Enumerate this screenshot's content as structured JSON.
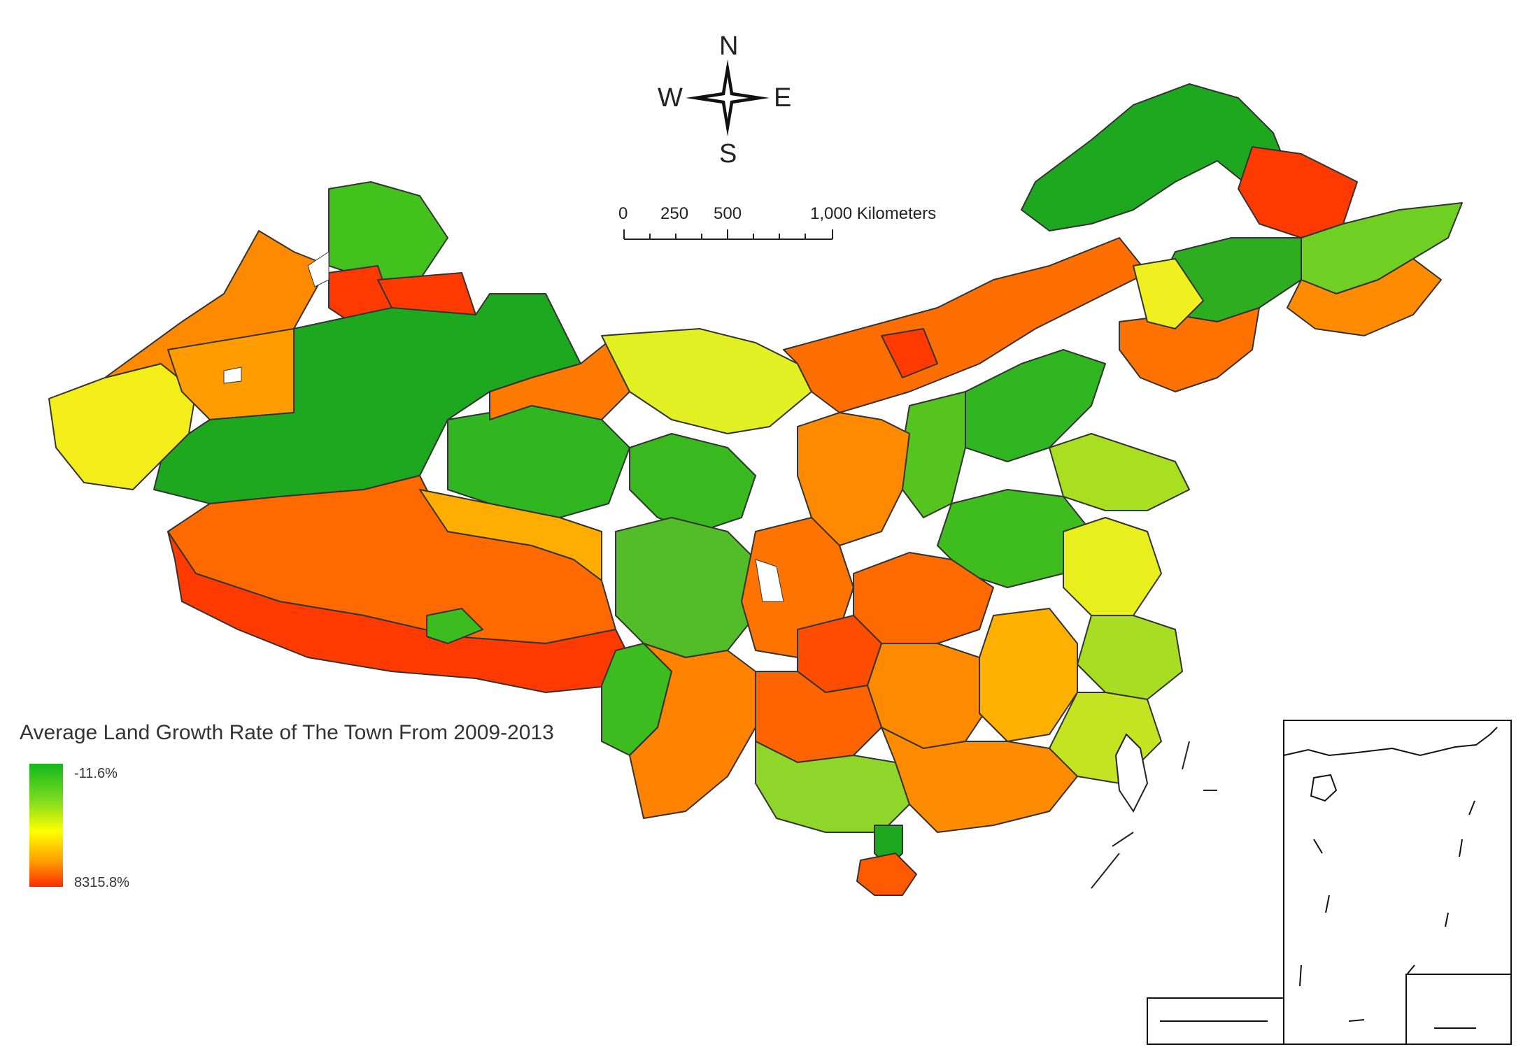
{
  "map": {
    "compass": {
      "north": "N",
      "south": "S",
      "east": "E",
      "west": "W"
    },
    "scale_bar": {
      "labels": [
        "0",
        "250",
        "500",
        "1,000 Kilometers"
      ]
    },
    "legend": {
      "title": "Average Land Growth Rate of The Town From 2009-2013",
      "max_label": "-11.6%",
      "min_label": "8315.8%",
      "gradient": [
        "#11b81c",
        "#7fdc1e",
        "#ffff00",
        "#ff9a00",
        "#ff2a00"
      ]
    },
    "colors": {
      "low": "#1bb01f",
      "light_green": "#8fd82a",
      "yellow": "#f6f200",
      "orange": "#ff7a00",
      "red": "#ff3300"
    }
  }
}
